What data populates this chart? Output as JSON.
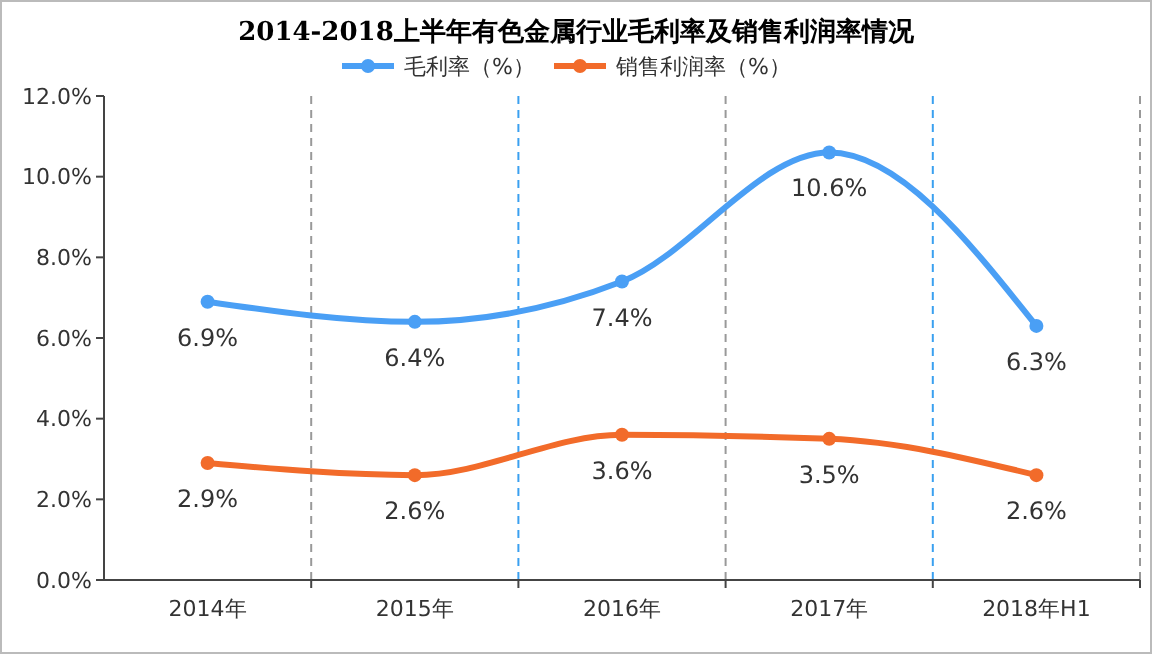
{
  "chart_data": {
    "type": "line",
    "title": "2014-2018上半年有色金属行业毛利率及销售利润率情况",
    "categories": [
      "2014年",
      "2015年",
      "2016年",
      "2017年",
      "2018年H1"
    ],
    "series": [
      {
        "name": "毛利率（%）",
        "color": "#4a9ff5",
        "values": [
          6.9,
          6.4,
          7.4,
          10.6,
          6.3
        ],
        "value_labels": [
          "6.9%",
          "6.4%",
          "7.4%",
          "10.6%",
          "6.3%"
        ]
      },
      {
        "name": "销售利润率（%）",
        "color": "#f26b2a",
        "values": [
          2.9,
          2.6,
          3.6,
          3.5,
          2.6
        ],
        "value_labels": [
          "2.9%",
          "2.6%",
          "3.6%",
          "3.5%",
          "2.6%"
        ]
      }
    ],
    "ylim": [
      0,
      12
    ],
    "yticks": [
      {
        "value": 0,
        "label": "0.0%"
      },
      {
        "value": 2,
        "label": "2.0%"
      },
      {
        "value": 4,
        "label": "4.0%"
      },
      {
        "value": 6,
        "label": "6.0%"
      },
      {
        "value": 8,
        "label": "8.0%"
      },
      {
        "value": 10,
        "label": "10.0%"
      },
      {
        "value": 12,
        "label": "12.0%"
      }
    ],
    "grid": "x",
    "legend": "top",
    "marker": "circle",
    "line_style": "solid"
  }
}
